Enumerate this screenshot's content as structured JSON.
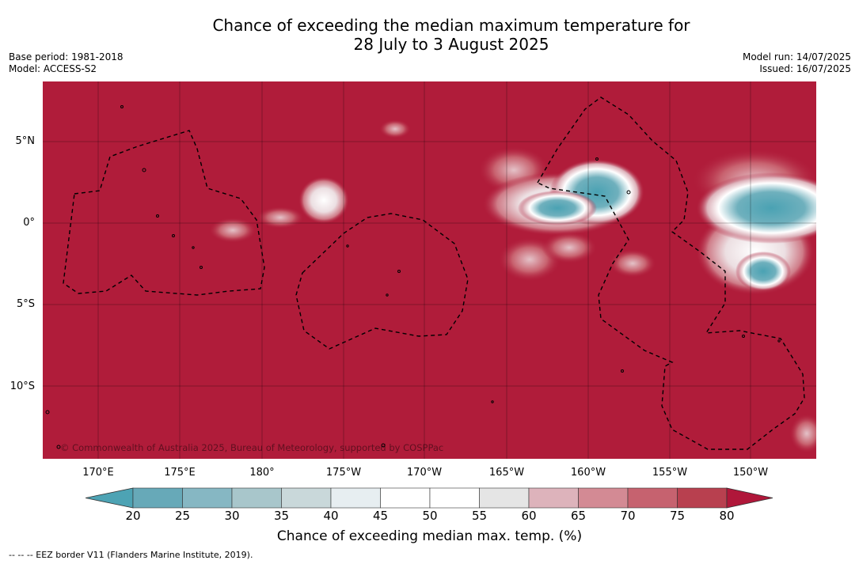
{
  "title_line1": "Chance of exceeding the median maximum temperature for",
  "title_line2": "28 July to 3 August 2025",
  "meta": {
    "base_period": "Base period: 1981-2018",
    "model": "Model: ACCESS-S2",
    "model_run": "Model run: 14/07/2025",
    "issued": "Issued: 16/07/2025"
  },
  "map": {
    "copyright": "© Commonwealth of Australia 2025, Bureau of Meteorology, supported by COSPPac",
    "lat_labels": [
      "5°N",
      "0°",
      "5°S",
      "10°S"
    ],
    "lon_labels": [
      "170°E",
      "175°E",
      "180°",
      "175°W",
      "170°W",
      "165°W",
      "160°W",
      "155°W",
      "150°W"
    ],
    "background_color": "#b01c3a"
  },
  "colorbar": {
    "ticks": [
      "20",
      "25",
      "30",
      "35",
      "40",
      "45",
      "50",
      "55",
      "60",
      "65",
      "70",
      "75",
      "80"
    ],
    "colors": [
      "#67a9b8",
      "#86b7c3",
      "#a8c6cb",
      "#c9d8da",
      "#e7eef1",
      "#ffffff",
      "#ffffff",
      "#e5e5e5",
      "#ddb3bb",
      "#d38a94",
      "#c6626f",
      "#b8404f"
    ],
    "under_color": "#4da3b4",
    "over_color": "#b0173a",
    "label": "Chance of exceeding median max. temp. (%)"
  },
  "footnote": "--  --  -- EEZ border V11 (Flanders Marine Institute, 2019)."
}
